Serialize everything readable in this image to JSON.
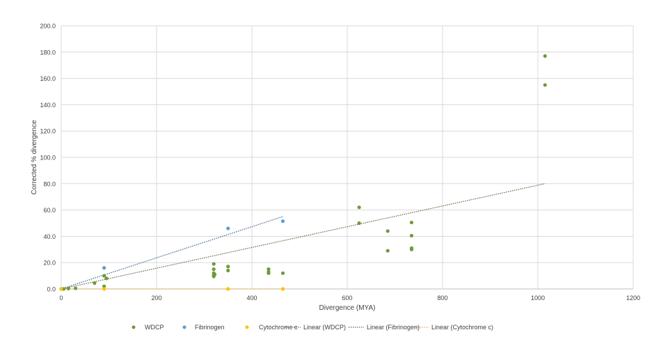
{
  "chart_data": {
    "type": "scatter",
    "title": "",
    "xlabel": "Divergence (MYA)",
    "ylabel": "Corrected % divergence",
    "xlim": [
      0,
      1200
    ],
    "ylim": [
      0,
      200
    ],
    "x_ticks": [
      "0",
      "200",
      "400",
      "600",
      "800",
      "1000",
      "1200"
    ],
    "y_ticks": [
      "0.0",
      "20.0",
      "40.0",
      "60.0",
      "80.0",
      "100.0",
      "120.0",
      "140.0",
      "160.0",
      "180.0",
      "200.0"
    ],
    "grid": true,
    "legend_position": "bottom",
    "series": [
      {
        "name": "WDCP",
        "color": "#6f9a3a",
        "points": [
          [
            0,
            0
          ],
          [
            5,
            0
          ],
          [
            15,
            0.3
          ],
          [
            30,
            0.5
          ],
          [
            70,
            4.5
          ],
          [
            90,
            10
          ],
          [
            95,
            8
          ],
          [
            90,
            2
          ],
          [
            320,
            19
          ],
          [
            320,
            15
          ],
          [
            320,
            12
          ],
          [
            320,
            10.5
          ],
          [
            320,
            9.5
          ],
          [
            322,
            11
          ],
          [
            350,
            17
          ],
          [
            350,
            14
          ],
          [
            435,
            15
          ],
          [
            435,
            13
          ],
          [
            435,
            12
          ],
          [
            465,
            12
          ],
          [
            625,
            62
          ],
          [
            625,
            50
          ],
          [
            685,
            44
          ],
          [
            685,
            29
          ],
          [
            735,
            50.5
          ],
          [
            735,
            40.5
          ],
          [
            735,
            31
          ],
          [
            735,
            30
          ],
          [
            1015,
            177
          ],
          [
            1015,
            155
          ]
        ]
      },
      {
        "name": "Fibrinogen",
        "color": "#5b9bd5",
        "points": [
          [
            0,
            0
          ],
          [
            90,
            16
          ],
          [
            350,
            46
          ],
          [
            465,
            51.5
          ]
        ]
      },
      {
        "name": "Cytochrome c",
        "color": "#ffc000",
        "points": [
          [
            0,
            0
          ],
          [
            90,
            0
          ],
          [
            350,
            0
          ],
          [
            465,
            0
          ]
        ]
      }
    ],
    "trendlines": [
      {
        "name": "Linear (WDCP)",
        "color": "#6b6b4a",
        "from": [
          0,
          0
        ],
        "to": [
          1015,
          80
        ]
      },
      {
        "name": "Linear (Fibrinogen)",
        "color": "#4a6b8a",
        "from": [
          0,
          0
        ],
        "to": [
          465,
          55
        ]
      },
      {
        "name": "Linear (Cytochrome c)",
        "color": "#d9b54a",
        "from": [
          0,
          0
        ],
        "to": [
          465,
          0
        ]
      }
    ]
  }
}
